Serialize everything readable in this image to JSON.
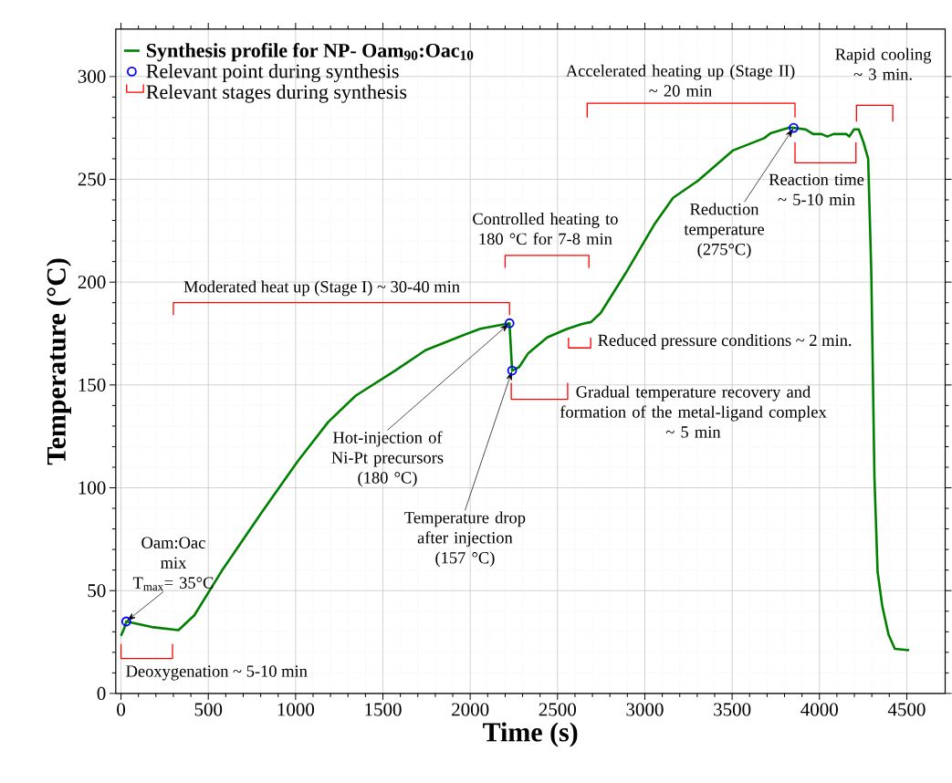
{
  "chart_data": {
    "type": "line",
    "xlabel": "Time (s)",
    "ylabel": "Temperature (°C)",
    "xlim": [
      -30,
      4720
    ],
    "ylim": [
      0,
      323
    ],
    "xticks": [
      0,
      500,
      1000,
      1500,
      2000,
      2500,
      3000,
      3500,
      4000,
      4500
    ],
    "yticks": [
      0,
      50,
      100,
      150,
      200,
      250,
      300
    ],
    "grid": true,
    "legend": "top left",
    "series": [
      {
        "name": "**Synthesis profile for NP- Oam$_{90}$:Oac$_{10}$**",
        "color": "#008000",
        "marker": "none",
        "x": [
          0,
          20,
          30,
          176,
          329,
          420,
          577,
          803,
          1012,
          1187,
          1343,
          1570,
          1744,
          1918,
          2058,
          2225,
          2240,
          2280,
          2333,
          2441,
          2550,
          2640,
          2692,
          2747,
          2892,
          2964,
          3054,
          3162,
          3306,
          3504,
          3684,
          3720,
          3829,
          3852,
          3919,
          3964,
          4012,
          4045,
          4081,
          4153,
          4171,
          4198,
          4225,
          4252,
          4279,
          4297,
          4315,
          4333,
          4360,
          4396,
          4432,
          4514
        ],
        "values": [
          28,
          32,
          35,
          32.3,
          30.8,
          38,
          59.6,
          87.7,
          112.9,
          132,
          144.7,
          157,
          166.9,
          172.8,
          177.3,
          180,
          157,
          158.7,
          165.5,
          173.1,
          177.1,
          179.7,
          180.6,
          185,
          204.6,
          215,
          228,
          241,
          249.4,
          264,
          270,
          272.4,
          275.2,
          275,
          274.3,
          272,
          272,
          270.8,
          272,
          272,
          270.8,
          274.3,
          274.3,
          268,
          260,
          204.6,
          105,
          59.2,
          42.4,
          28.6,
          21.7,
          21
        ]
      },
      {
        "type": "scatter",
        "name": "Relevant point during synthesis",
        "color": "#0000ff",
        "marker": "circle",
        "x": [
          30,
          2225,
          2240,
          3852
        ],
        "values": [
          35,
          180,
          157,
          275
        ]
      },
      {
        "type": "line",
        "name": "Relevant stages during synthesis",
        "color": "#ff0000",
        "marker": "none",
        "x": [
          0,
          0,
          295,
          295
        ],
        "values": [
          24,
          17,
          17,
          24
        ]
      },
      {
        "type": "line",
        "color": "#ff0000",
        "marker": "none",
        "x": [
          300,
          300,
          2225,
          2225
        ],
        "values": [
          184,
          190,
          190,
          184
        ]
      },
      {
        "type": "line",
        "color": "#ff0000",
        "marker": "none",
        "x": [
          2200,
          2200,
          2680,
          2680
        ],
        "values": [
          207,
          213,
          213,
          207
        ]
      },
      {
        "type": "line",
        "color": "#ff0000",
        "marker": "none",
        "x": [
          2563,
          2563,
          2690,
          2690
        ],
        "values": [
          173,
          168,
          168,
          173
        ]
      },
      {
        "type": "line",
        "color": "#ff0000",
        "marker": "none",
        "x": [
          2235,
          2235,
          2558,
          2558
        ],
        "values": [
          151,
          143,
          143,
          151
        ]
      },
      {
        "type": "line",
        "color": "#ff0000",
        "marker": "none",
        "x": [
          2670,
          2670,
          3860,
          3860
        ],
        "values": [
          280,
          287,
          287,
          280
        ]
      },
      {
        "type": "line",
        "color": "#ff0000",
        "marker": "none",
        "x": [
          3860,
          3860,
          4209,
          4209
        ],
        "values": [
          268,
          258,
          258,
          268
        ]
      },
      {
        "type": "line",
        "color": "#ff0000",
        "marker": "none",
        "x": [
          4212,
          4212,
          4420,
          4420
        ],
        "values": [
          278,
          286,
          286,
          278
        ]
      }
    ],
    "annotations": [
      {
        "text": "Oam:Oac\nmix\nT$_{max}$= 35°C",
        "x": 30,
        "y": 35
      },
      "Deoxygenation ~ 5-10 min",
      "Moderated heat up (Stage I) ~ 30-40 min",
      "Controlled heating to\n180 °C for 7-8 min",
      {
        "text": "Hot-injection of\nNi-Pt precursors\n(180 °C)",
        "x": 2225,
        "y": 180
      },
      {
        "text": "Temperature drop\nafter injection\n(157 °C)",
        "x": 2240,
        "y": 157
      },
      "Reduced pressure conditions ~ 2 min.",
      "Gradual temperature recovery and\nformation of the metal-ligand complex\n~ 5 min",
      "Accelerated heating up (Stage II)\n~ 20 min",
      {
        "text": "Reduction\ntemperature\n(275°C)",
        "x": 3852,
        "y": 275
      },
      "Reaction time\n~ 5-10 min",
      "Rapid cooling\n~ 3 min."
    ]
  }
}
